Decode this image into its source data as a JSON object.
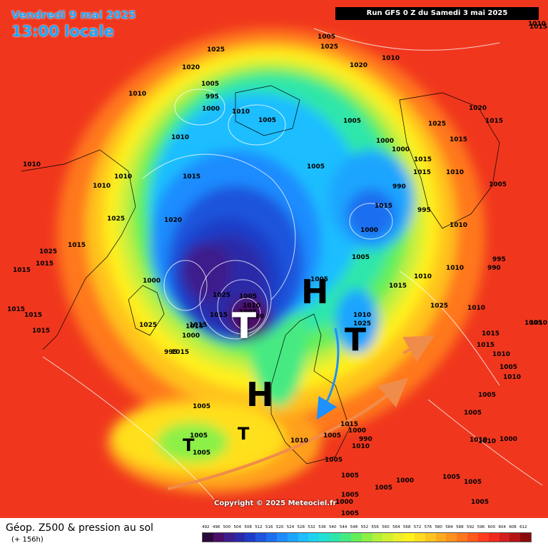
{
  "header": {
    "date": "Vendredi 9 mai 2025",
    "local_time": "13:00 locale",
    "run": "Run GFS 0 Z du Samedi 3 mai 2025"
  },
  "copyright": "Copyright © 2025 Meteociel.fr",
  "footer": {
    "product": "Géop. Z500 & pression au sol",
    "lead": "(+ 156h)"
  },
  "centers": [
    "H",
    "T",
    "H",
    "T",
    "T",
    "T"
  ],
  "pressure_labels": [
    "1015",
    "1025",
    "1020",
    "1005",
    "995",
    "1000",
    "1010",
    "1005",
    "1010",
    "1010",
    "1005",
    "1025",
    "1020",
    "1010",
    "1010",
    "1005",
    "1000",
    "1000",
    "1015",
    "1005",
    "1010",
    "1015",
    "1010",
    "1020",
    "1025",
    "1015",
    "1025",
    "1015",
    "1015",
    "1015",
    "1015",
    "1015",
    "1000",
    "1025",
    "1015",
    "1000",
    "995",
    "1015",
    "1000",
    "990",
    "995",
    "1005",
    "1010",
    "1015",
    "1010",
    "1005",
    "995",
    "990",
    "1025",
    "1010",
    "1005",
    "1025",
    "1005",
    "1010",
    "1005",
    "1020",
    "1015",
    "1015",
    "1010",
    "1025",
    "1010",
    "1005",
    "1015",
    "1015",
    "1010",
    "1005",
    "1005",
    "1005",
    "1010",
    "1010",
    "1010",
    "1015",
    "1000",
    "990",
    "1005",
    "1010",
    "1005",
    "1005",
    "1005",
    "1000",
    "1005",
    "1000",
    "1005",
    "1005",
    "1005",
    "1005",
    "1005",
    "1005",
    "1010",
    "1005",
    "1015",
    "1015",
    "1020",
    "1025",
    "1015",
    "1015",
    "1010",
    "1010",
    "1010",
    "1000"
  ],
  "z500_scale": [
    "492",
    "496",
    "500",
    "504",
    "508",
    "512",
    "516",
    "520",
    "524",
    "528",
    "532",
    "536",
    "540",
    "544",
    "548",
    "552",
    "556",
    "560",
    "564",
    "568",
    "572",
    "576",
    "580",
    "584",
    "588",
    "592",
    "596",
    "600",
    "604",
    "608",
    "612"
  ],
  "z500_colors": [
    "#2a0a3c",
    "#4b0f66",
    "#3c1e8c",
    "#2a2aa8",
    "#1e3cc8",
    "#1e55dc",
    "#1e6ef0",
    "#1e8cff",
    "#1ea5ff",
    "#1ebeff",
    "#20d2f0",
    "#22e0d2",
    "#2ee6aa",
    "#46ea82",
    "#64ee5a",
    "#8cf046",
    "#b4f03c",
    "#d2f032",
    "#ecf028",
    "#fff01e",
    "#ffdc1e",
    "#ffc31e",
    "#ffaa1e",
    "#ff911e",
    "#ff781e",
    "#ff5a1e",
    "#ff3c1e",
    "#f0281e",
    "#d21e1e",
    "#b41414",
    "#8c0a0a"
  ]
}
